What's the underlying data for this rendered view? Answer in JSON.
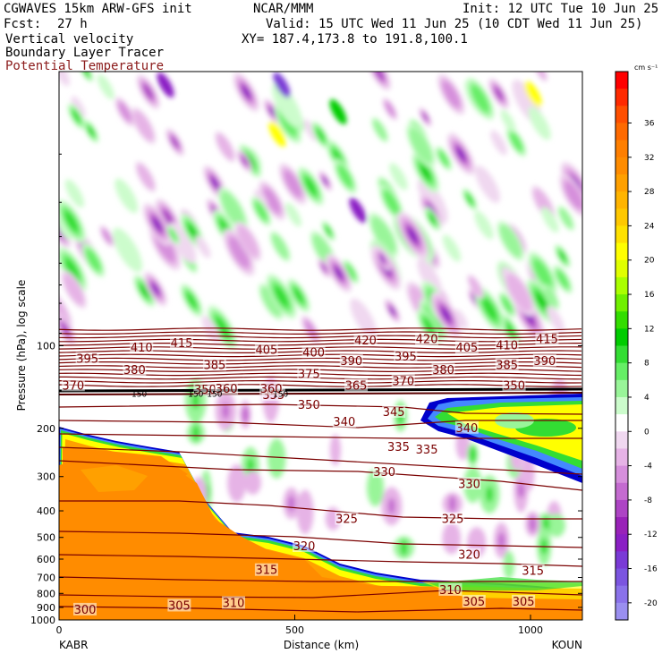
{
  "header": {
    "model": "CGWAVES 15km ARW-GFS init",
    "org": "NCAR/MMM",
    "init": "Init: 12 UTC Tue 10 Jun 25",
    "fcst_label": "Fcst:",
    "fcst_value": "27 h",
    "valid": "Valid: 15 UTC Wed 11 Jun 25 (10 CDT Wed 11 Jun 25)",
    "field1": "Vertical velocity",
    "field2": "Boundary Layer Tracer",
    "field3": "Potential Temperature",
    "xy": "XY= 187.4,173.8 to 191.8,100.1"
  },
  "colors": {
    "theta_line": "#7a0000",
    "theta_label": "#7a0000",
    "tracer_fill": "#ff8c00",
    "tracer_edge": "#0000cc"
  },
  "chart_data": {
    "type": "heatmap",
    "title": "",
    "xlabel": "Distance (km)",
    "ylabel": "Pressure (hPa), log scale",
    "y_scale": "log",
    "xlim": [
      0,
      1110
    ],
    "ylim": [
      1000,
      10
    ],
    "x_ticks": [
      0,
      500,
      1000
    ],
    "y_ticks": [
      100,
      200,
      300,
      400,
      500,
      600,
      700,
      800,
      900,
      1000
    ],
    "start_label": "KABR",
    "end_label": "KOUN",
    "colorbar": {
      "unit": "cm s⁻¹",
      "tick_labels": [
        36,
        32,
        28,
        24,
        20,
        16,
        12,
        8,
        4,
        0,
        -4,
        -8,
        -12,
        -16,
        -20
      ],
      "levels": [
        40,
        38,
        36,
        34,
        32,
        30,
        28,
        26,
        24,
        22,
        20,
        18,
        16,
        14,
        12,
        10,
        8,
        6,
        4,
        2,
        0,
        -2,
        -4,
        -6,
        -8,
        -10,
        -12,
        -14,
        -16,
        -18,
        -20,
        -22
      ],
      "colors": [
        "#ff0000",
        "#ff2a00",
        "#ff4f00",
        "#ff6a00",
        "#ff7f00",
        "#ff8c00",
        "#ffa000",
        "#ffb400",
        "#ffc800",
        "#ffe100",
        "#ffff00",
        "#e0ff00",
        "#aaff00",
        "#70f000",
        "#33dd00",
        "#00cc00",
        "#33dd33",
        "#66ee66",
        "#99f599",
        "#ccfccc",
        "#ffffff",
        "#f0d8f0",
        "#e6b3e6",
        "#d68fdc",
        "#c46bd0",
        "#ad44c4",
        "#9922b8",
        "#8a1fc4",
        "#7a3ad6",
        "#7b55e0",
        "#8a72ea",
        "#9a8ff0"
      ]
    },
    "theta_contour_labels": [
      {
        "value": 300,
        "x": 55,
        "p": 920
      },
      {
        "value": 305,
        "x": 255,
        "p": 890
      },
      {
        "value": 310,
        "x": 370,
        "p": 870
      },
      {
        "value": 305,
        "x": 880,
        "p": 860
      },
      {
        "value": 305,
        "x": 985,
        "p": 860
      },
      {
        "value": 310,
        "x": 830,
        "p": 780
      },
      {
        "value": 315,
        "x": 440,
        "p": 660
      },
      {
        "value": 315,
        "x": 1005,
        "p": 665
      },
      {
        "value": 320,
        "x": 520,
        "p": 540
      },
      {
        "value": 320,
        "x": 870,
        "p": 580
      },
      {
        "value": 325,
        "x": 610,
        "p": 430
      },
      {
        "value": 325,
        "x": 835,
        "p": 430
      },
      {
        "value": 330,
        "x": 690,
        "p": 290
      },
      {
        "value": 330,
        "x": 870,
        "p": 320
      },
      {
        "value": 335,
        "x": 720,
        "p": 235
      },
      {
        "value": 335,
        "x": 780,
        "p": 240
      },
      {
        "value": 340,
        "x": 605,
        "p": 190
      },
      {
        "value": 340,
        "x": 865,
        "p": 200
      },
      {
        "value": 345,
        "x": 710,
        "p": 175
      },
      {
        "value": 350,
        "x": 530,
        "p": 165
      },
      {
        "value": 355,
        "x": 455,
        "p": 152
      },
      {
        "value": 350,
        "x": 965,
        "p": 140
      },
      {
        "value": 350,
        "x": 310,
        "p": 145
      },
      {
        "value": 360,
        "x": 355,
        "p": 144
      },
      {
        "value": 360,
        "x": 450,
        "p": 144
      },
      {
        "value": 365,
        "x": 630,
        "p": 140
      },
      {
        "value": 370,
        "x": 30,
        "p": 140
      },
      {
        "value": 370,
        "x": 730,
        "p": 135
      },
      {
        "value": 375,
        "x": 530,
        "p": 127
      },
      {
        "value": 380,
        "x": 160,
        "p": 123
      },
      {
        "value": 380,
        "x": 815,
        "p": 123
      },
      {
        "value": 385,
        "x": 330,
        "p": 118
      },
      {
        "value": 385,
        "x": 950,
        "p": 118
      },
      {
        "value": 390,
        "x": 620,
        "p": 114
      },
      {
        "value": 390,
        "x": 1030,
        "p": 114
      },
      {
        "value": 395,
        "x": 60,
        "p": 112
      },
      {
        "value": 395,
        "x": 735,
        "p": 110
      },
      {
        "value": 400,
        "x": 540,
        "p": 106
      },
      {
        "value": 405,
        "x": 440,
        "p": 104
      },
      {
        "value": 405,
        "x": 865,
        "p": 102
      },
      {
        "value": 410,
        "x": 175,
        "p": 102
      },
      {
        "value": 410,
        "x": 950,
        "p": 100
      },
      {
        "value": 415,
        "x": 260,
        "p": 98
      },
      {
        "value": 415,
        "x": 1035,
        "p": 95
      },
      {
        "value": 420,
        "x": 650,
        "p": 96
      },
      {
        "value": 420,
        "x": 780,
        "p": 95
      }
    ],
    "tropopause_label": {
      "value": 150,
      "positions": [
        170,
        290,
        330,
        470
      ]
    }
  }
}
